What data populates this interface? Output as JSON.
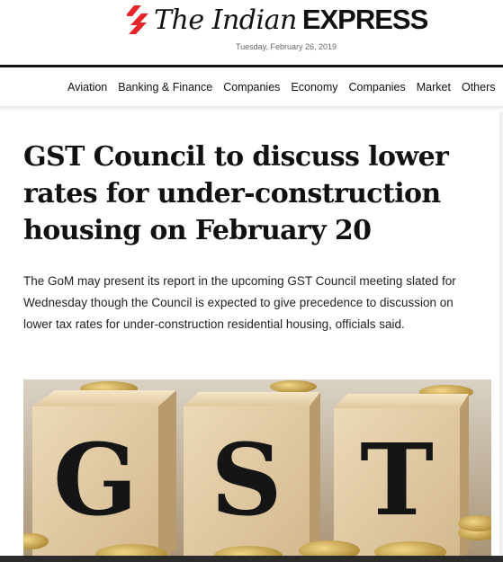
{
  "masthead": {
    "logo_the": "The Indian",
    "logo_express": "EXPRESS",
    "date": "Tuesday, February 26, 2019",
    "logo_accent_color": "#e5252a"
  },
  "nav": {
    "items": [
      "Aviation",
      "Banking & Finance",
      "Companies",
      "Economy",
      "Companies",
      "Market",
      "Others"
    ]
  },
  "article": {
    "headline": "GST Council to discuss lower rates for under-construction housing on February 20",
    "summary": "The GoM may present its report in the upcoming GST Council meeting slated for Wednesday though the Council is expected to give precedence to discussion on lower tax rates for under-construction residential housing, officials said."
  },
  "hero_image": {
    "letters": [
      "G",
      "S",
      "T"
    ]
  }
}
